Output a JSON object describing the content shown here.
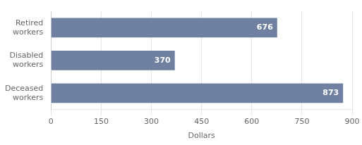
{
  "chart_data": {
    "type": "bar",
    "orientation": "horizontal",
    "categories": [
      "Retired\nworkers",
      "Disabled\nworkers",
      "Deceased\nworkers"
    ],
    "values": [
      676,
      370,
      873
    ],
    "color": "#7080a0",
    "xlabel": "Dollars",
    "xlim": [
      0,
      900
    ],
    "xticks": [
      0,
      150,
      300,
      450,
      600,
      750,
      900
    ],
    "grid": true,
    "data_labels": true
  }
}
